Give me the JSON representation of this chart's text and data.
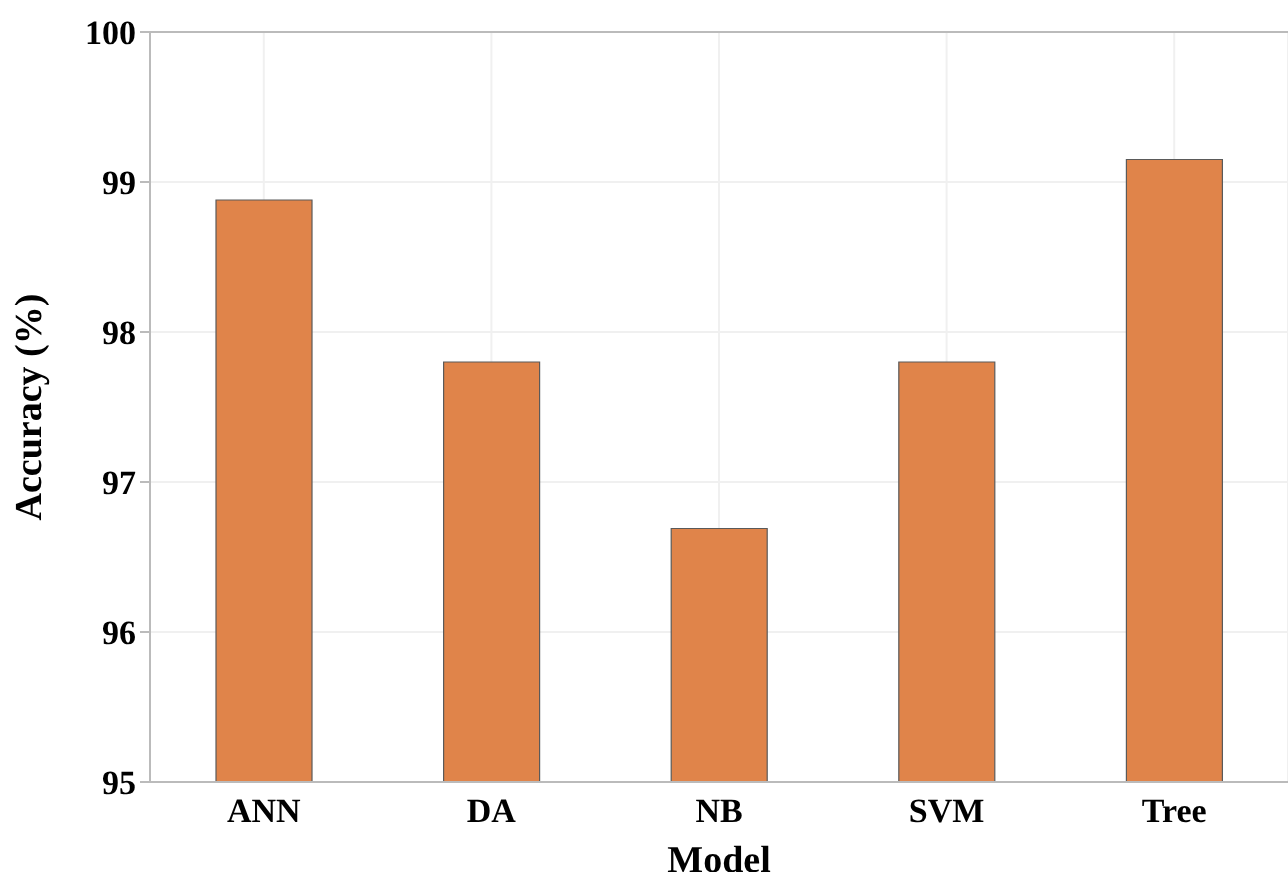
{
  "chart_data": {
    "type": "bar",
    "xlabel": "Model",
    "ylabel": "Accuracy (%)",
    "categories": [
      "ANN",
      "DA",
      "NB",
      "SVM",
      "Tree"
    ],
    "values": [
      98.88,
      97.8,
      96.69,
      97.8,
      99.15
    ],
    "color": "#e0844a",
    "ylim": [
      95,
      100
    ],
    "yticks": [
      95,
      96,
      97,
      98,
      99,
      100
    ],
    "grid": true
  }
}
